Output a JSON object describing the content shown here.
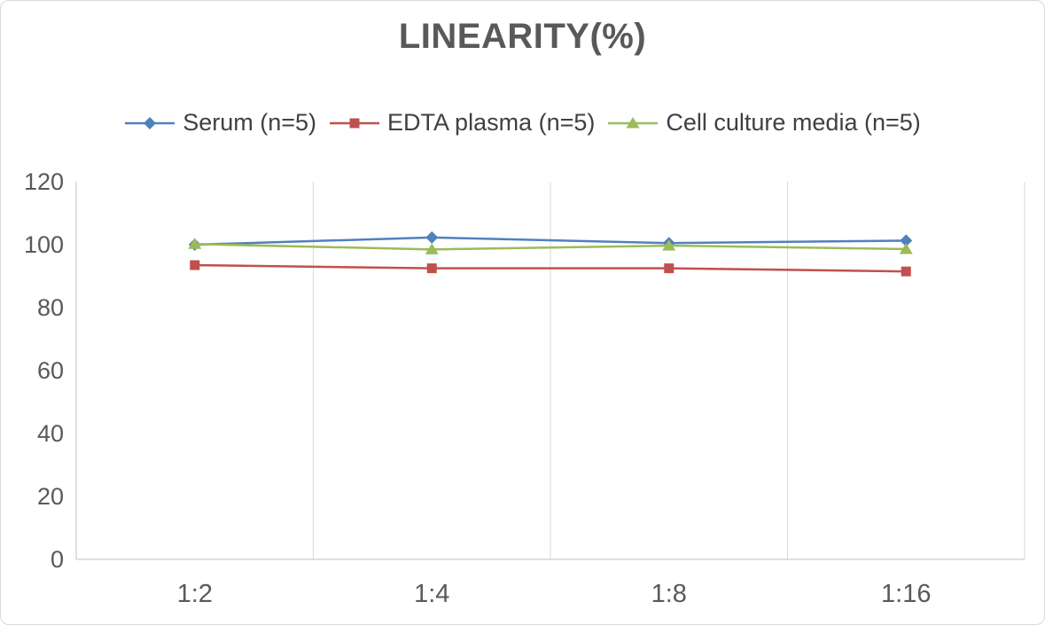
{
  "chart_data": {
    "type": "line",
    "title": "LINEARITY(%)",
    "categories": [
      "1:2",
      "1:4",
      "1:8",
      "1:16"
    ],
    "series": [
      {
        "name": "Serum (n=5)",
        "color": "#4F81BD",
        "marker": "diamond",
        "values": [
          100,
          102.3,
          100.5,
          101.3
        ]
      },
      {
        "name": "EDTA plasma (n=5)",
        "color": "#C0504D",
        "marker": "square",
        "values": [
          93.5,
          92.5,
          92.5,
          91.5
        ]
      },
      {
        "name": "Cell culture media (n=5)",
        "color": "#9BBB59",
        "marker": "triangle",
        "values": [
          100.2,
          98.5,
          99.7,
          98.6
        ]
      }
    ],
    "xlabel": "",
    "ylabel": "",
    "ylim": [
      0,
      120
    ],
    "yticks": [
      0,
      20,
      40,
      60,
      80,
      100,
      120
    ],
    "grid": "vertical",
    "legend_position": "top",
    "axis_color": "#BFBFBF",
    "gridline_color": "#D9D9D9",
    "text_color": "#595959"
  }
}
